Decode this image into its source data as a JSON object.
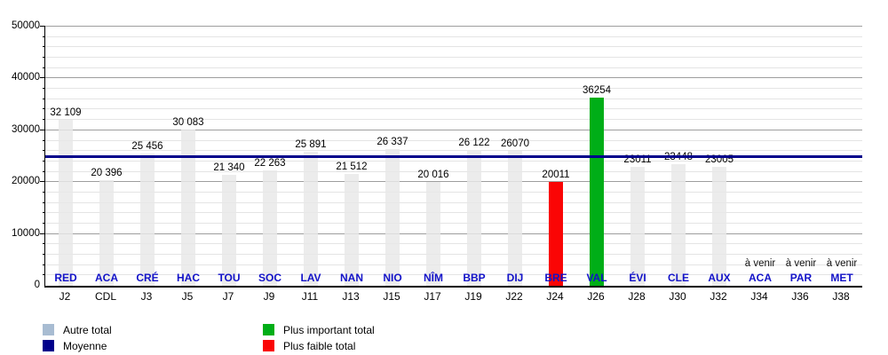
{
  "chart_data": {
    "type": "bar",
    "title": "",
    "xlabel": "",
    "ylabel": "",
    "ylim": [
      0,
      50000
    ],
    "yticks": [
      0,
      10000,
      20000,
      30000,
      40000,
      50000
    ],
    "ytick_labels": [
      "0",
      "10000",
      "20000",
      "30000",
      "40000",
      "50000"
    ],
    "minor_grid_step": 2000,
    "grid": true,
    "legend_position": "bottom",
    "upcoming_text": "à venir",
    "average_line": {
      "label": "Moyenne",
      "value": 24901,
      "color": "#00008b"
    },
    "colors": {
      "normal_bar": "#e8e8e8",
      "highest_bar": "#00ae17",
      "lowest_bar": "#fa0505",
      "average": "#00008b",
      "club_label": "#1212c8",
      "autre_legend_swatch": "#a8bcd2"
    },
    "categories": [
      {
        "club": "RED",
        "day": "J2",
        "value": 32109,
        "value_label": "32 109",
        "type": "normal"
      },
      {
        "club": "ACA",
        "day": "CDL",
        "value": 20396,
        "value_label": "20 396",
        "type": "normal"
      },
      {
        "club": "CRÉ",
        "day": "J3",
        "value": 25456,
        "value_label": "25 456",
        "type": "normal"
      },
      {
        "club": "HAC",
        "day": "J5",
        "value": 30083,
        "value_label": "30 083",
        "type": "normal"
      },
      {
        "club": "TOU",
        "day": "J7",
        "value": 21340,
        "value_label": "21 340",
        "type": "normal"
      },
      {
        "club": "SOC",
        "day": "J9",
        "value": 22263,
        "value_label": "22 263",
        "type": "normal"
      },
      {
        "club": "LAV",
        "day": "J11",
        "value": 25891,
        "value_label": "25 891",
        "type": "normal"
      },
      {
        "club": "NAN",
        "day": "J13",
        "value": 21512,
        "value_label": "21 512",
        "type": "normal"
      },
      {
        "club": "NIO",
        "day": "J15",
        "value": 26337,
        "value_label": "26 337",
        "type": "normal"
      },
      {
        "club": "NÎM",
        "day": "J17",
        "value": 20016,
        "value_label": "20 016",
        "type": "normal"
      },
      {
        "club": "BBP",
        "day": "J19",
        "value": 26122,
        "value_label": "26 122",
        "type": "normal"
      },
      {
        "club": "DIJ",
        "day": "J22",
        "value": 26070,
        "value_label": "26070",
        "type": "normal"
      },
      {
        "club": "BRE",
        "day": "J24",
        "value": 20011,
        "value_label": "20011",
        "type": "lowest"
      },
      {
        "club": "VAL",
        "day": "J26",
        "value": 36254,
        "value_label": "36254",
        "type": "highest"
      },
      {
        "club": "ÉVI",
        "day": "J28",
        "value": 23011,
        "value_label": "23011",
        "type": "normal"
      },
      {
        "club": "CLE",
        "day": "J30",
        "value": 23448,
        "value_label": "23448",
        "type": "normal"
      },
      {
        "club": "AUX",
        "day": "J32",
        "value": 23005,
        "value_label": "23005",
        "type": "normal"
      },
      {
        "club": "ACA",
        "day": "J34",
        "value": null,
        "value_label": "",
        "type": "upcoming"
      },
      {
        "club": "PAR",
        "day": "J36",
        "value": null,
        "value_label": "",
        "type": "upcoming"
      },
      {
        "club": "MET",
        "day": "J38",
        "value": null,
        "value_label": "",
        "type": "upcoming"
      }
    ],
    "legend": {
      "columns": [
        [
          {
            "label": "Autre total",
            "color": "#a8bcd2"
          },
          {
            "label": "Moyenne",
            "color": "#00008b"
          }
        ],
        [
          {
            "label": "Plus important total",
            "color": "#00ae17"
          },
          {
            "label": "Plus faible total",
            "color": "#fa0505"
          }
        ]
      ]
    }
  }
}
